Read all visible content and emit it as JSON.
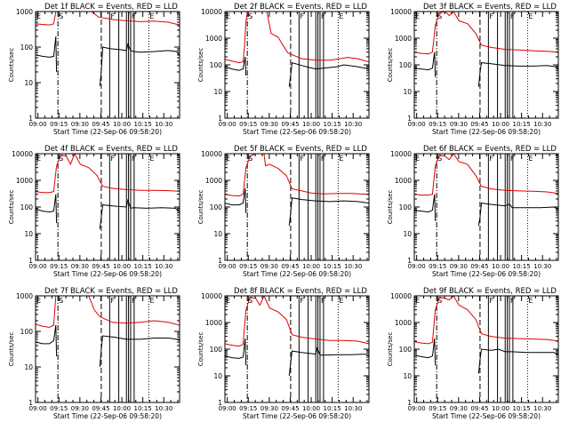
{
  "chart_data": {
    "type": "line",
    "layout": "3x3 grid",
    "shared": {
      "xlabel": "Start Time (22-Sep-06 09:58:20)",
      "ylabel": "Counts/sec",
      "x_tick_labels": [
        "09:00",
        "09:15",
        "09:30",
        "09:45",
        "10:00",
        "10:15",
        "10:30"
      ],
      "xlim_minutes": [
        0,
        103
      ],
      "y_scale": "log",
      "legend_text": "BLACK = Events, RED = LLD",
      "series_colors": {
        "events": "#000000",
        "lld": "#e00000"
      },
      "event_markers": [
        {
          "label": "E",
          "t": 0,
          "style": "none"
        },
        {
          "label": "S",
          "t": 16,
          "style": "dash-dot"
        },
        {
          "label": "",
          "t": 47,
          "style": "dashed"
        },
        {
          "label": "F",
          "t": 53,
          "style": "solid"
        },
        {
          "label": "",
          "t": 59.5,
          "style": "solid"
        },
        {
          "label": "I",
          "t": 65,
          "style": "solid"
        },
        {
          "label": "",
          "t": 66.5,
          "style": "solid"
        },
        {
          "label": "F",
          "t": 68,
          "style": "solid"
        },
        {
          "label": "",
          "t": 70.5,
          "style": "solid"
        },
        {
          "label": "E",
          "t": 81,
          "style": "dotted"
        }
      ]
    },
    "panels": [
      {
        "title": "Det 1f BLACK = Events, RED = LLD",
        "ylim": [
          1,
          1000
        ],
        "y_tick_labels": [
          "1",
          "10",
          "100",
          "1000"
        ],
        "series": [
          {
            "name": "Events",
            "t": [
              0,
              5,
              10,
              13,
              14.5,
              15,
              16,
              30,
              46,
              47,
              48,
              53,
              60,
              65,
              66,
              68,
              70,
              75,
              85,
              95,
              101,
              103
            ],
            "values": [
              60,
              55,
              52,
              55,
              200,
              20,
              null,
              null,
              8,
              20,
              100,
              90,
              85,
              80,
              120,
              80,
              75,
              72,
              75,
              80,
              75,
              55
            ]
          },
          {
            "name": "LLD",
            "t": [
              0,
              10,
              13,
              14.5,
              15,
              40,
              45,
              55,
              65,
              75,
              85,
              95,
              103
            ],
            "values": [
              450,
              420,
              450,
              1000,
              null,
              1000,
              700,
              600,
              550,
              520,
              540,
              500,
              420
            ]
          }
        ]
      },
      {
        "title": "Det 2f BLACK = Events, RED = LLD",
        "ylim": [
          1,
          10000
        ],
        "y_tick_labels": [
          "1",
          "10",
          "100",
          "1000",
          "10000"
        ],
        "series": [
          {
            "name": "Events",
            "t": [
              0,
              5,
              10,
              13,
              14.5,
              15,
              16,
              46,
              47,
              48,
              55,
              60,
              65,
              70,
              80,
              85,
              95,
              103
            ],
            "values": [
              85,
              70,
              62,
              70,
              200,
              40,
              null,
              15,
              40,
              120,
              95,
              80,
              70,
              75,
              85,
              100,
              85,
              70
            ]
          },
          {
            "name": "LLD",
            "t": [
              0,
              5,
              10,
              13,
              14,
              15,
              16,
              30,
              33,
              38,
              41,
              45,
              55,
              65,
              75,
              82,
              88,
              95,
              103
            ],
            "values": [
              160,
              140,
              120,
              130,
              500,
              4000,
              10000,
              10000,
              1500,
              1100,
              600,
              280,
              170,
              150,
              150,
              170,
              190,
              170,
              130
            ]
          }
        ]
      },
      {
        "title": "Det 3f BLACK = Events, RED = LLD",
        "ylim": [
          1,
          10000
        ],
        "y_tick_labels": [
          "1",
          "10",
          "100",
          "1000",
          "10000"
        ],
        "series": [
          {
            "name": "Events",
            "t": [
              0,
              5,
              10,
              13,
              14.5,
              15,
              16,
              46,
              47,
              48,
              55,
              65,
              75,
              85,
              95,
              101,
              103
            ],
            "values": [
              75,
              70,
              65,
              75,
              300,
              35,
              null,
              15,
              50,
              120,
              110,
              95,
              90,
              90,
              95,
              85,
              65
            ]
          },
          {
            "name": "LLD",
            "t": [
              0,
              5,
              10,
              13,
              15,
              18,
              22,
              25,
              28,
              32,
              38,
              44,
              48,
              55,
              65,
              75,
              85,
              95,
              103
            ],
            "values": [
              300,
              270,
              260,
              300,
              3000,
              9000,
              10000,
              7000,
              10000,
              4500,
              3500,
              1500,
              550,
              450,
              380,
              360,
              340,
              320,
              300
            ]
          }
        ]
      },
      {
        "title": "Det 4f BLACK = Events, RED = LLD",
        "ylim": [
          1,
          10000
        ],
        "y_tick_labels": [
          "1",
          "10",
          "100",
          "1000",
          "10000"
        ],
        "series": [
          {
            "name": "Events",
            "t": [
              0,
              5,
              10,
              13,
              14.5,
              15,
              16,
              46,
              47,
              48,
              55,
              65,
              66,
              68,
              70,
              80,
              90,
              100,
              103
            ],
            "values": [
              85,
              70,
              65,
              70,
              300,
              25,
              null,
              15,
              40,
              120,
              110,
              100,
              180,
              90,
              95,
              90,
              95,
              90,
              65
            ]
          },
          {
            "name": "LLD",
            "t": [
              0,
              5,
              10,
              13,
              15,
              18,
              22,
              25,
              28,
              32,
              38,
              44,
              48,
              55,
              65,
              75,
              85,
              95,
              103
            ],
            "values": [
              380,
              350,
              350,
              380,
              3500,
              9000,
              8000,
              4000,
              10000,
              4000,
              3000,
              1500,
              600,
              500,
              450,
              420,
              420,
              410,
              390
            ]
          }
        ]
      },
      {
        "title": "Det 5f BLACK = Events, RED = LLD",
        "ylim": [
          1,
          10000
        ],
        "y_tick_labels": [
          "1",
          "10",
          "100",
          "1000",
          "10000"
        ],
        "series": [
          {
            "name": "Events",
            "t": [
              0,
              5,
              10,
              13,
              14.5,
              15,
              16,
              46,
              47,
              48,
              55,
              65,
              75,
              85,
              95,
              103
            ],
            "values": [
              140,
              120,
              120,
              140,
              500,
              60,
              null,
              20,
              60,
              220,
              190,
              170,
              160,
              170,
              160,
              140
            ]
          },
          {
            "name": "LLD",
            "t": [
              0,
              5,
              10,
              13,
              15,
              18,
              22,
              28,
              29,
              32,
              38,
              44,
              48,
              55,
              62,
              70,
              80,
              90,
              103
            ],
            "values": [
              300,
              270,
              260,
              300,
              3000,
              8000,
              10000,
              10000,
              3500,
              4000,
              2800,
              1500,
              480,
              400,
              330,
              310,
              320,
              320,
              300
            ]
          }
        ]
      },
      {
        "title": "Det 6f BLACK = Events, RED = LLD",
        "ylim": [
          1,
          10000
        ],
        "y_tick_labels": [
          "1",
          "10",
          "100",
          "1000",
          "10000"
        ],
        "series": [
          {
            "name": "Events",
            "t": [
              0,
              5,
              10,
              13,
              14.5,
              15,
              16,
              46,
              47,
              48,
              55,
              65,
              68,
              70,
              80,
              90,
              100,
              103
            ],
            "values": [
              75,
              70,
              65,
              75,
              300,
              30,
              null,
              20,
              40,
              140,
              125,
              110,
              130,
              95,
              95,
              95,
              100,
              80
            ]
          },
          {
            "name": "LLD",
            "t": [
              0,
              5,
              10,
              13,
              15,
              18,
              22,
              25,
              28,
              32,
              38,
              44,
              48,
              55,
              65,
              75,
              85,
              95,
              103
            ],
            "values": [
              300,
              280,
              280,
              300,
              3500,
              9000,
              8000,
              6000,
              10000,
              5000,
              4000,
              1500,
              600,
              480,
              420,
              400,
              390,
              370,
              320
            ]
          }
        ]
      },
      {
        "title": "Det 7f BLACK = Events, RED = LLD",
        "ylim": [
          1,
          1000
        ],
        "y_tick_labels": [
          "1",
          "10",
          "100",
          "1000"
        ],
        "series": [
          {
            "name": "Events",
            "t": [
              0,
              5,
              10,
              13,
              14.5,
              15,
              16,
              46,
              47,
              48,
              55,
              65,
              75,
              85,
              95,
              101,
              103
            ],
            "values": [
              50,
              45,
              45,
              55,
              150,
              20,
              null,
              10,
              30,
              75,
              70,
              60,
              60,
              65,
              65,
              60,
              55
            ]
          },
          {
            "name": "LLD",
            "t": [
              0,
              5,
              10,
              13,
              14.5,
              15,
              38,
              42,
              46,
              50,
              55,
              65,
              75,
              85,
              95,
              103
            ],
            "values": [
              160,
              140,
              130,
              150,
              1000,
              null,
              1000,
              400,
              260,
              220,
              180,
              170,
              180,
              200,
              180,
              150
            ]
          }
        ]
      },
      {
        "title": "Det 8f BLACK = Events, RED = LLD",
        "ylim": [
          1,
          10000
        ],
        "y_tick_labels": [
          "1",
          "10",
          "100",
          "1000",
          "10000"
        ],
        "series": [
          {
            "name": "Events",
            "t": [
              0,
              5,
              10,
              13,
              14.5,
              15,
              16,
              46,
              47,
              48,
              55,
              65,
              66,
              68,
              70,
              80,
              90,
              100,
              103
            ],
            "values": [
              55,
              48,
              45,
              50,
              250,
              25,
              null,
              10,
              30,
              85,
              75,
              65,
              110,
              60,
              60,
              62,
              62,
              65,
              55
            ]
          },
          {
            "name": "LLD",
            "t": [
              0,
              5,
              10,
              13,
              15,
              18,
              22,
              25,
              28,
              32,
              38,
              44,
              48,
              55,
              65,
              75,
              85,
              95,
              103
            ],
            "values": [
              160,
              140,
              130,
              150,
              3000,
              9000,
              8000,
              4500,
              10000,
              3500,
              2500,
              1300,
              350,
              280,
              240,
              210,
              210,
              200,
              160
            ]
          }
        ]
      },
      {
        "title": "Det 9f BLACK = Events, RED = LLD",
        "ylim": [
          1,
          10000
        ],
        "y_tick_labels": [
          "1",
          "10",
          "100",
          "1000",
          "10000"
        ],
        "series": [
          {
            "name": "Events",
            "t": [
              0,
              5,
              10,
              13,
              14.5,
              15,
              16,
              46,
              47,
              48,
              55,
              60,
              65,
              70,
              80,
              90,
              100,
              103
            ],
            "values": [
              60,
              52,
              48,
              55,
              250,
              25,
              null,
              12,
              40,
              100,
              90,
              100,
              80,
              80,
              75,
              75,
              75,
              60
            ]
          },
          {
            "name": "LLD",
            "t": [
              0,
              5,
              10,
              13,
              15,
              18,
              22,
              25,
              28,
              32,
              38,
              44,
              48,
              55,
              65,
              75,
              85,
              95,
              103
            ],
            "values": [
              190,
              170,
              160,
              180,
              3000,
              9000,
              8000,
              7000,
              10000,
              4500,
              3000,
              1300,
              380,
              300,
              260,
              250,
              240,
              230,
              200
            ]
          }
        ]
      }
    ]
  }
}
